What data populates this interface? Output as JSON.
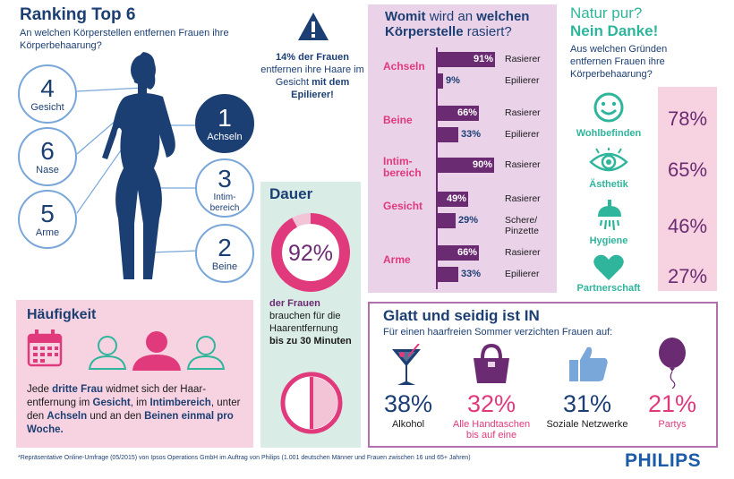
{
  "ranking": {
    "title": "Ranking Top 6",
    "subtitle": "An welchen Körperstellen entfernen Frauen ihre Körperbehaarung?",
    "items": [
      {
        "rank": "4",
        "label": "Gesicht"
      },
      {
        "rank": "6",
        "label": "Nase"
      },
      {
        "rank": "5",
        "label": "Arme"
      },
      {
        "rank": "1",
        "label": "Achseln"
      },
      {
        "rank": "3",
        "label": "Intim-bereich"
      },
      {
        "rank": "2",
        "label": "Beine"
      }
    ]
  },
  "warning": {
    "text_1": "14% der Frauen",
    "text_2": "entfernen ihre Haare im Gesicht",
    "text_3": "mit dem Epilierer!"
  },
  "haeufigkeit": {
    "title": "Häufigkeit",
    "t1": "Jede ",
    "b1": "dritte Frau",
    "t2": " widmet sich der Haar-entfernung im ",
    "b2": "Gesicht",
    "t3": ", im ",
    "b3": "Intimbereich",
    "t4": ", unter den ",
    "b4": "Achseln",
    "t5": " und an den ",
    "b5": "Beinen einmal pro Woche."
  },
  "dauer": {
    "title": "Dauer",
    "pct": "92%",
    "value": 0.92,
    "t1": "der Frauen",
    "t2": "brauchen für die Haarentfernung",
    "t3": "bis zu 30 Minuten"
  },
  "womit": {
    "title_1": "Womit",
    "title_2": " wird an ",
    "title_3": "welchen Körperstelle",
    "title_4": " rasiert?",
    "rows": [
      {
        "category": "Achseln",
        "value": 91,
        "label": "91%",
        "method": "Rasierer"
      },
      {
        "category": "",
        "value": 9,
        "label": "9%",
        "method": "Epilierer"
      },
      {
        "category": "Beine",
        "value": 66,
        "label": "66%",
        "method": "Rasierer"
      },
      {
        "category": "",
        "value": 33,
        "label": "33%",
        "method": "Epilierer"
      },
      {
        "category": "Intim-bereich",
        "value": 90,
        "label": "90%",
        "method": "Rasierer"
      },
      {
        "category": "Gesicht",
        "value": 49,
        "label": "49%",
        "method": "Rasierer"
      },
      {
        "category": "",
        "value": 29,
        "label": "29%",
        "method": "Schere/ Pinzette"
      },
      {
        "category": "Arme",
        "value": 66,
        "label": "66%",
        "method": "Rasierer"
      },
      {
        "category": "",
        "value": 33,
        "label": "33%",
        "method": "Epilierer"
      }
    ]
  },
  "natur": {
    "title_1": "Natur pur?",
    "title_2": "Nein Danke!",
    "subtitle": "Aus welchen Gründen entfernen Frauen ihre Körperbehaarung?",
    "items": [
      {
        "label": "Wohlbefinden",
        "pct": "78%",
        "icon": "smiley-icon"
      },
      {
        "label": "Ästhetik",
        "pct": "65%",
        "icon": "eye-icon"
      },
      {
        "label": "Hygiene",
        "pct": "46%",
        "icon": "shower-icon"
      },
      {
        "label": "Partnerschaft",
        "pct": "27%",
        "icon": "heart-icon"
      }
    ]
  },
  "glatt": {
    "title": "Glatt und seidig ist IN",
    "subtitle": "Für einen haarfreien Sommer verzichten Frauen auf:",
    "items": [
      {
        "pct": "38%",
        "label": "Alkohol",
        "icon": "cocktail-icon",
        "color": "#1c3f73"
      },
      {
        "pct": "32%",
        "label": "Alle Handtaschen bis auf eine",
        "icon": "handbag-icon",
        "color": "#e03a7d"
      },
      {
        "pct": "31%",
        "label": "Soziale Netzwerke",
        "icon": "thumbs-up-icon",
        "color": "#1c3f73"
      },
      {
        "pct": "21%",
        "label": "Partys",
        "icon": "balloon-icon",
        "color": "#e03a7d"
      }
    ]
  },
  "footnote": "*Repräsentative Online-Umfrage (05/2015) von Ipsos Operations GmbH im Auftrag von Philips (1.001 deutschen Männer und Frauen zwischen 16 und 65+ Jahren)",
  "brand": "PHILIPS",
  "colors": {
    "navy": "#1c3f73",
    "pink": "#e03a7d",
    "purple": "#6b2b72",
    "teal": "#2fb59c",
    "lightpink": "#f7d3e1",
    "lavender": "#ead2e9",
    "mint": "#d9ece5"
  }
}
